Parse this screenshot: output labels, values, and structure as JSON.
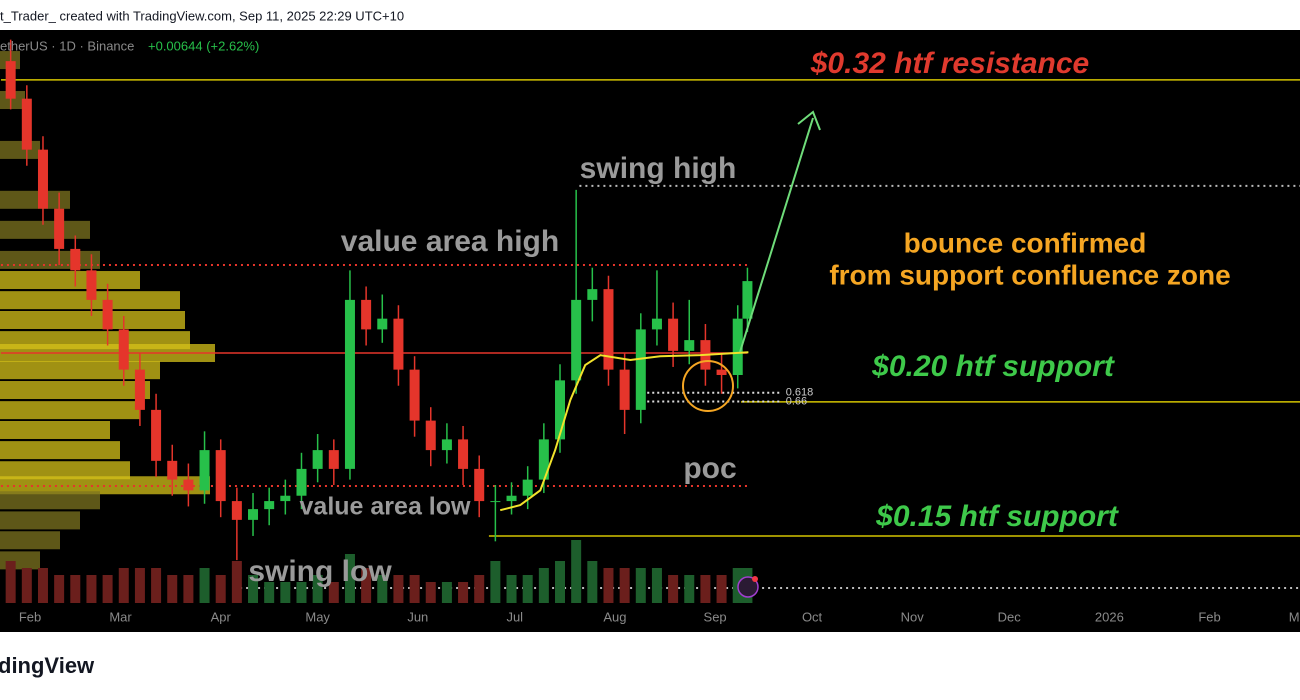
{
  "header": {
    "credit": "t_Trader_ created with TradingView.com, Sep 11, 2025 22:29 UTC+10"
  },
  "footer": {
    "logo": "dingView"
  },
  "chart_data": {
    "type": "candlestick",
    "symbol": "etherUS · 1D · Binance",
    "change": "+0.00644 (+2.62%)",
    "xlim": [
      21.7,
      424
    ],
    "ylim": [
      0.1142,
      0.3386
    ],
    "xticks": [
      {
        "value": 31,
        "label": "Feb"
      },
      {
        "value": 59,
        "label": "Mar"
      },
      {
        "value": 90,
        "label": "Apr"
      },
      {
        "value": 120,
        "label": "May"
      },
      {
        "value": 151,
        "label": "Jun"
      },
      {
        "value": 181,
        "label": "Jul"
      },
      {
        "value": 212,
        "label": "Aug"
      },
      {
        "value": 243,
        "label": "Sep"
      },
      {
        "value": 273,
        "label": "Oct"
      },
      {
        "value": 304,
        "label": "Nov"
      },
      {
        "value": 334,
        "label": "Dec"
      },
      {
        "value": 365,
        "label": "2026"
      },
      {
        "value": 396,
        "label": "Feb"
      },
      {
        "value": 424,
        "label": "Mar"
      }
    ],
    "colors": {
      "up": "#27c04a",
      "down": "#e5352b",
      "volume_up": "#1d5e2c",
      "volume_down": "#6b1f1c",
      "profile_in": "#d6c21a",
      "profile_out": "#7d7420",
      "vwap": "#f2e22b"
    },
    "candles": {
      "x": [
        25,
        30,
        35,
        40,
        45,
        50,
        55,
        60,
        65,
        70,
        75,
        80,
        85,
        90,
        95,
        100,
        105,
        110,
        115,
        120,
        125,
        130,
        135,
        140,
        145,
        150,
        155,
        160,
        165,
        170,
        175,
        180,
        185,
        190,
        195,
        200,
        205,
        210,
        215,
        220,
        225,
        230,
        235,
        240,
        245,
        250,
        253
      ],
      "open": [
        0.327,
        0.313,
        0.294,
        0.272,
        0.257,
        0.249,
        0.238,
        0.227,
        0.212,
        0.197,
        0.178,
        0.171,
        0.167,
        0.182,
        0.163,
        0.156,
        0.16,
        0.163,
        0.165,
        0.175,
        0.182,
        0.175,
        0.238,
        0.227,
        0.231,
        0.212,
        0.193,
        0.182,
        0.186,
        0.175,
        0.163,
        0.163,
        0.165,
        0.171,
        0.186,
        0.208,
        0.238,
        0.242,
        0.212,
        0.197,
        0.227,
        0.231,
        0.219,
        0.223,
        0.212,
        0.21,
        0.231
      ],
      "high": [
        0.335,
        0.318,
        0.299,
        0.278,
        0.262,
        0.255,
        0.244,
        0.232,
        0.218,
        0.203,
        0.184,
        0.177,
        0.189,
        0.186,
        0.168,
        0.166,
        0.168,
        0.171,
        0.181,
        0.188,
        0.186,
        0.249,
        0.243,
        0.24,
        0.236,
        0.217,
        0.198,
        0.192,
        0.191,
        0.18,
        0.169,
        0.17,
        0.176,
        0.192,
        0.214,
        0.279,
        0.25,
        0.247,
        0.218,
        0.233,
        0.249,
        0.237,
        0.238,
        0.229,
        0.218,
        0.236,
        0.25
      ],
      "low": [
        0.309,
        0.288,
        0.266,
        0.251,
        0.243,
        0.232,
        0.221,
        0.206,
        0.191,
        0.172,
        0.165,
        0.161,
        0.162,
        0.157,
        0.141,
        0.15,
        0.154,
        0.158,
        0.16,
        0.17,
        0.169,
        0.171,
        0.221,
        0.222,
        0.206,
        0.187,
        0.176,
        0.177,
        0.169,
        0.157,
        0.148,
        0.158,
        0.16,
        0.166,
        0.181,
        0.203,
        0.23,
        0.206,
        0.188,
        0.192,
        0.221,
        0.213,
        0.214,
        0.206,
        0.203,
        0.205,
        0.226
      ],
      "close": [
        0.313,
        0.294,
        0.272,
        0.257,
        0.249,
        0.238,
        0.227,
        0.212,
        0.197,
        0.178,
        0.171,
        0.167,
        0.182,
        0.163,
        0.156,
        0.16,
        0.163,
        0.165,
        0.175,
        0.182,
        0.175,
        0.238,
        0.227,
        0.231,
        0.212,
        0.193,
        0.182,
        0.186,
        0.175,
        0.163,
        0.163,
        0.165,
        0.171,
        0.186,
        0.208,
        0.238,
        0.242,
        0.212,
        0.197,
        0.227,
        0.231,
        0.219,
        0.223,
        0.212,
        0.21,
        0.231,
        0.245
      ],
      "volume": [
        6,
        5,
        5,
        4,
        4,
        4,
        4,
        5,
        5,
        5,
        4,
        4,
        5,
        4,
        6,
        4,
        3,
        3,
        3,
        4,
        3,
        7,
        5,
        4,
        4,
        4,
        3,
        3,
        3,
        4,
        6,
        4,
        4,
        5,
        6,
        9,
        6,
        5,
        5,
        5,
        5,
        4,
        4,
        4,
        4,
        5,
        5
      ]
    },
    "volume_profile": {
      "price": [
        0.3274,
        0.3125,
        0.2939,
        0.2753,
        0.2641,
        0.2529,
        0.2454,
        0.2379,
        0.2305,
        0.223,
        0.2182,
        0.2118,
        0.2044,
        0.1969,
        0.1895,
        0.182,
        0.1745,
        0.1689,
        0.1633,
        0.1558,
        0.1484,
        0.1409
      ],
      "volume": [
        20,
        25,
        40,
        70,
        90,
        100,
        140,
        180,
        185,
        190,
        215,
        160,
        150,
        140,
        110,
        120,
        130,
        210,
        100,
        80,
        60,
        40
      ]
    },
    "vwap": {
      "x": [
        176.5,
        182.7,
        188.9,
        193.5,
        198.2,
        202.8,
        207.5,
        216.8,
        226,
        238.4,
        253.3
      ],
      "values": [
        0.1596,
        0.1615,
        0.167,
        0.182,
        0.2007,
        0.2137,
        0.2174,
        0.2156,
        0.217,
        0.2174,
        0.2185
      ]
    },
    "levels": [
      {
        "price": 0.32,
        "from": 22,
        "to": 424,
        "color": "#d4c400",
        "dash": "solid"
      },
      {
        "price": 0.2805,
        "from": 201,
        "to": 424,
        "color": "#bbbbbb",
        "dash": "dotted"
      },
      {
        "price": 0.251,
        "from": 22,
        "to": 253,
        "color": "#e5352b",
        "dash": "dotted"
      },
      {
        "price": 0.2182,
        "from": 22,
        "to": 253,
        "color": "#e5352b",
        "dash": "solid"
      },
      {
        "price": 0.2,
        "from": 251,
        "to": 424,
        "color": "#d4c400",
        "dash": "solid"
      },
      {
        "price": 0.1686,
        "from": 22,
        "to": 253,
        "color": "#e5352b",
        "dash": "dotted"
      },
      {
        "price": 0.15,
        "from": 173,
        "to": 424,
        "color": "#d4c400",
        "dash": "solid"
      },
      {
        "price": 0.1306,
        "from": 96,
        "to": 424,
        "color": "#bbbbbb",
        "dash": "dotted"
      }
    ],
    "fib": [
      {
        "value": 0.618,
        "price": 0.2034
      },
      {
        "value": 0.66,
        "price": 0.2001
      }
    ],
    "fib_from": 222,
    "fib_to": 263,
    "annotations": [
      {
        "text": "$0.32 htf resistance",
        "color": "#e03a2e"
      },
      {
        "text": "swing high",
        "color": "#9a9a9a"
      },
      {
        "text": "value area high",
        "color": "#9a9a9a"
      },
      {
        "text": "bounce confirmed",
        "color": "#f5a623"
      },
      {
        "text": "from support confluence zone",
        "color": "#f5a623"
      },
      {
        "text": "$0.20 htf support",
        "color": "#3ec94a"
      },
      {
        "text": "poc",
        "color": "#9a9a9a"
      },
      {
        "text": "$0.15 htf support",
        "color": "#3ec94a"
      },
      {
        "text": "value area low",
        "color": "#9a9a9a"
      },
      {
        "text": "swing low",
        "color": "#9a9a9a"
      }
    ]
  }
}
